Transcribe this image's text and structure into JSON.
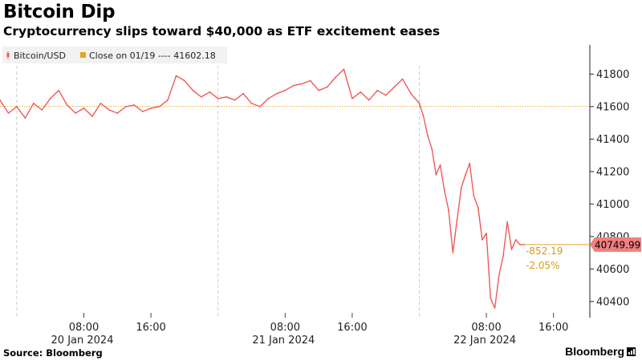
{
  "header": {
    "title": "Bitcoin Dip",
    "subtitle": "Cryptocurrency slips toward $40,000 as ETF excitement eases"
  },
  "footer": {
    "source": "Source: Bloomberg",
    "brand": "Bloomberg"
  },
  "colors": {
    "series": "#ee5a5a",
    "reference": "#e8a31c",
    "annotation": "#d89a16",
    "grid": "#cccccc",
    "price_tag_bg": "#f07f7f"
  },
  "chart_data": {
    "type": "line",
    "legend": [
      {
        "label": "Bitcoin/USD",
        "marker": "line-icon"
      },
      {
        "label": "Close on 01/19 ---- 41602.18",
        "marker": "square-icon"
      }
    ],
    "ylim": [
      40300,
      41980
    ],
    "yticks": [
      40400,
      40600,
      40800,
      41000,
      41200,
      41400,
      41600,
      41800
    ],
    "xlim": [
      "2024-01-19 22:00",
      "2024-01-22 20:20"
    ],
    "day_separators": [
      "2024-01-20 00:00",
      "2024-01-21 00:00",
      "2024-01-22 00:00"
    ],
    "xticks": [
      {
        "time": "2024-01-20 08:00",
        "label": "08:00",
        "date": "20 Jan 2024"
      },
      {
        "time": "2024-01-20 16:00",
        "label": "16:00",
        "date": ""
      },
      {
        "time": "2024-01-21 08:00",
        "label": "08:00",
        "date": "21 Jan 2024"
      },
      {
        "time": "2024-01-21 16:00",
        "label": "16:00",
        "date": ""
      },
      {
        "time": "2024-01-22 08:00",
        "label": "08:00",
        "date": "22 Jan 2024"
      },
      {
        "time": "2024-01-22 16:00",
        "label": "16:00",
        "date": ""
      }
    ],
    "reference_line": {
      "label": "Close on 01/19",
      "value": 41602.18
    },
    "last_value": {
      "label": "40749.99",
      "value": 40749.99
    },
    "change_annotation": {
      "absolute": "-852.19",
      "percent": "-2.05%"
    },
    "series": [
      {
        "name": "Bitcoin/USD",
        "x": [
          "2024-01-19 22:00",
          "2024-01-19 23:00",
          "2024-01-20 00:00",
          "2024-01-20 01:00",
          "2024-01-20 02:00",
          "2024-01-20 03:00",
          "2024-01-20 04:00",
          "2024-01-20 05:00",
          "2024-01-20 06:00",
          "2024-01-20 07:00",
          "2024-01-20 08:00",
          "2024-01-20 09:00",
          "2024-01-20 10:00",
          "2024-01-20 11:00",
          "2024-01-20 12:00",
          "2024-01-20 13:00",
          "2024-01-20 14:00",
          "2024-01-20 15:00",
          "2024-01-20 16:00",
          "2024-01-20 17:00",
          "2024-01-20 18:00",
          "2024-01-20 19:00",
          "2024-01-20 20:00",
          "2024-01-20 21:00",
          "2024-01-20 22:00",
          "2024-01-20 23:00",
          "2024-01-21 00:00",
          "2024-01-21 01:00",
          "2024-01-21 02:00",
          "2024-01-21 03:00",
          "2024-01-21 04:00",
          "2024-01-21 05:00",
          "2024-01-21 06:00",
          "2024-01-21 07:00",
          "2024-01-21 08:00",
          "2024-01-21 09:00",
          "2024-01-21 10:00",
          "2024-01-21 11:00",
          "2024-01-21 12:00",
          "2024-01-21 13:00",
          "2024-01-21 14:00",
          "2024-01-21 15:00",
          "2024-01-21 16:00",
          "2024-01-21 17:00",
          "2024-01-21 18:00",
          "2024-01-21 19:00",
          "2024-01-21 20:00",
          "2024-01-21 21:00",
          "2024-01-21 22:00",
          "2024-01-21 23:00",
          "2024-01-22 00:00",
          "2024-01-22 00:30",
          "2024-01-22 01:00",
          "2024-01-22 01:30",
          "2024-01-22 02:00",
          "2024-01-22 02:30",
          "2024-01-22 03:00",
          "2024-01-22 03:30",
          "2024-01-22 04:00",
          "2024-01-22 04:30",
          "2024-01-22 05:00",
          "2024-01-22 05:30",
          "2024-01-22 06:00",
          "2024-01-22 06:30",
          "2024-01-22 07:00",
          "2024-01-22 07:30",
          "2024-01-22 08:00",
          "2024-01-22 08:30",
          "2024-01-22 09:00",
          "2024-01-22 09:30",
          "2024-01-22 10:00",
          "2024-01-22 10:30",
          "2024-01-22 11:00",
          "2024-01-22 11:30",
          "2024-01-22 12:00",
          "2024-01-22 12:30"
        ],
        "values": [
          41640,
          41560,
          41600,
          41530,
          41620,
          41580,
          41650,
          41700,
          41610,
          41560,
          41590,
          41540,
          41620,
          41580,
          41560,
          41600,
          41610,
          41570,
          41590,
          41600,
          41640,
          41790,
          41760,
          41700,
          41660,
          41690,
          41650,
          41660,
          41640,
          41680,
          41620,
          41600,
          41650,
          41680,
          41700,
          41730,
          41740,
          41760,
          41700,
          41720,
          41780,
          41830,
          41650,
          41690,
          41640,
          41700,
          41670,
          41720,
          41770,
          41680,
          41620,
          41540,
          41420,
          41340,
          41180,
          41240,
          41080,
          40960,
          40700,
          40900,
          41100,
          41180,
          41250,
          41050,
          40980,
          40780,
          40820,
          40420,
          40360,
          40560,
          40680,
          40890,
          40720,
          40780,
          40750,
          40749.99
        ]
      }
    ]
  }
}
